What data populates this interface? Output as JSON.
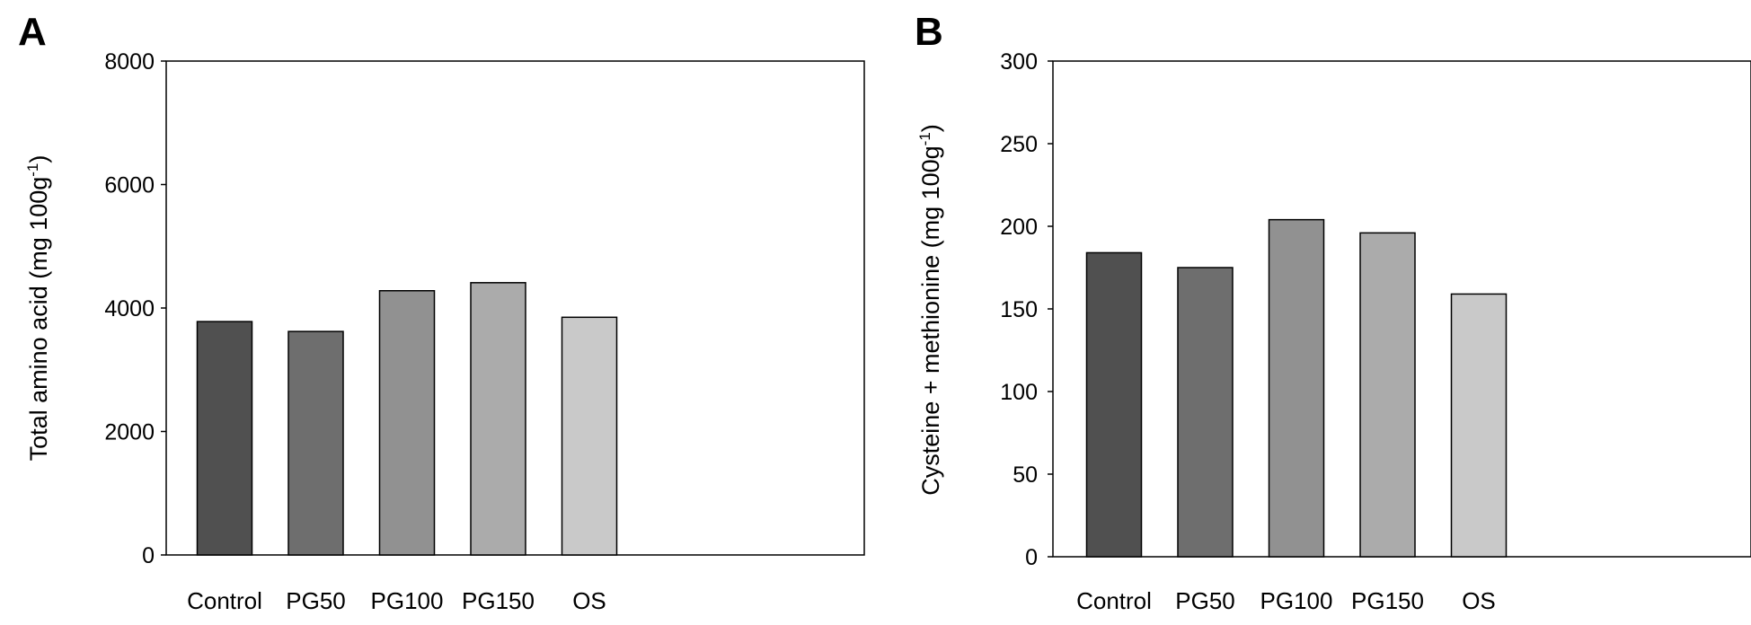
{
  "chart_data": [
    {
      "type": "bar",
      "panel": "A",
      "categories": [
        "Control",
        "PG50",
        "PG100",
        "PG150",
        "OS"
      ],
      "values": [
        3780,
        3620,
        4280,
        4410,
        3850
      ],
      "ylabel_main": "Total amino acid (mg 100g",
      "ylabel_sup": "-1",
      "ylabel_close": ")",
      "ylim": [
        0,
        8000
      ],
      "yticks": [
        0,
        2000,
        4000,
        6000,
        8000
      ],
      "bar_colors": [
        "#505050",
        "#6e6e6e",
        "#919191",
        "#ababab",
        "#c9c9c9"
      ],
      "grid": false
    },
    {
      "type": "bar",
      "panel": "B",
      "categories": [
        "Control",
        "PG50",
        "PG100",
        "PG150",
        "OS"
      ],
      "values": [
        184,
        175,
        204,
        196,
        159
      ],
      "ylabel_main": "Cysteine + methionine (mg 100g",
      "ylabel_sup": "-1",
      "ylabel_close": ")",
      "ylim": [
        0,
        300
      ],
      "yticks": [
        0,
        50,
        100,
        150,
        200,
        250,
        300
      ],
      "bar_colors": [
        "#505050",
        "#6e6e6e",
        "#919191",
        "#ababab",
        "#c9c9c9"
      ],
      "grid": false
    }
  ]
}
